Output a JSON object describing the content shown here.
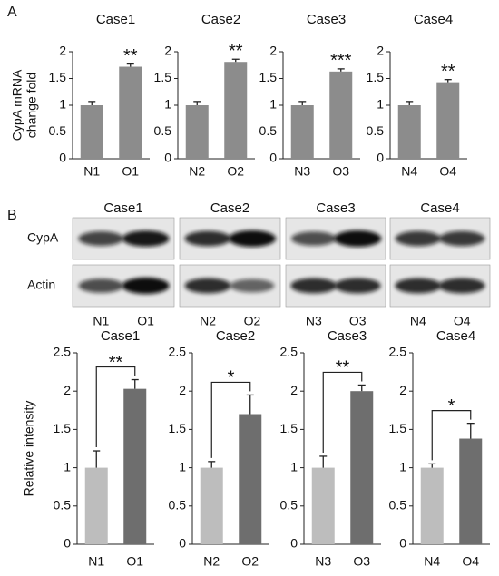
{
  "panel_labels": [
    "A",
    "B"
  ],
  "blot": {
    "titles": [
      "Case1",
      "Case2",
      "Case3",
      "Case4"
    ],
    "rows": [
      "CypA",
      "Actin"
    ],
    "lanes": [
      "N1",
      "O1",
      "N2",
      "O2",
      "N3",
      "O3",
      "N4",
      "O4"
    ]
  },
  "chart_data": [
    {
      "type": "bar",
      "title": "Case1",
      "ylabel": [
        "CypA mRNA",
        "change fold"
      ],
      "categories": [
        "N1",
        "O1"
      ],
      "values": [
        1.0,
        1.72
      ],
      "errors": [
        0.07,
        0.05
      ],
      "colors": [
        "#8c8c8c",
        "#8c8c8c"
      ],
      "annotations": [
        "**"
      ],
      "ylim": [
        0,
        2
      ],
      "yticks": [
        0,
        0.5,
        1,
        1.5,
        2
      ]
    },
    {
      "type": "bar",
      "title": "Case2",
      "categories": [
        "N2",
        "O2"
      ],
      "values": [
        1.0,
        1.81
      ],
      "errors": [
        0.07,
        0.05
      ],
      "colors": [
        "#8c8c8c",
        "#8c8c8c"
      ],
      "annotations": [
        "**"
      ],
      "ylim": [
        0,
        2
      ],
      "yticks": [
        0,
        0.5,
        1,
        1.5,
        2
      ]
    },
    {
      "type": "bar",
      "title": "Case3",
      "categories": [
        "N3",
        "O3"
      ],
      "values": [
        1.0,
        1.63
      ],
      "errors": [
        0.07,
        0.05
      ],
      "colors": [
        "#8c8c8c",
        "#8c8c8c"
      ],
      "annotations": [
        "***"
      ],
      "ylim": [
        0,
        2
      ],
      "yticks": [
        0,
        0.5,
        1,
        1.5,
        2
      ]
    },
    {
      "type": "bar",
      "title": "Case4",
      "categories": [
        "N4",
        "O4"
      ],
      "values": [
        1.0,
        1.43
      ],
      "errors": [
        0.07,
        0.05
      ],
      "colors": [
        "#8c8c8c",
        "#8c8c8c"
      ],
      "annotations": [
        "**"
      ],
      "ylim": [
        0,
        2
      ],
      "yticks": [
        0,
        0.5,
        1,
        1.5,
        2
      ]
    },
    {
      "type": "bracket-bar",
      "title": "Case1",
      "ylabel": [
        "Relative intensity"
      ],
      "categories": [
        "N1",
        "O1"
      ],
      "values": [
        1.0,
        2.03
      ],
      "errors": [
        0.22,
        0.12
      ],
      "colors": [
        "#bdbdbd",
        "#6e6e6e"
      ],
      "annotations": [
        "**"
      ],
      "ylim": [
        0,
        2.5
      ],
      "yticks": [
        0,
        0.5,
        1,
        1.5,
        2,
        2.5
      ]
    },
    {
      "type": "bracket-bar",
      "title": "Case2",
      "categories": [
        "N2",
        "O2"
      ],
      "values": [
        1.0,
        1.7
      ],
      "errors": [
        0.08,
        0.25
      ],
      "colors": [
        "#bdbdbd",
        "#6e6e6e"
      ],
      "annotations": [
        "*"
      ],
      "ylim": [
        0,
        2.5
      ],
      "yticks": [
        0,
        0.5,
        1,
        1.5,
        2,
        2.5
      ]
    },
    {
      "type": "bracket-bar",
      "title": "Case3",
      "categories": [
        "N3",
        "O3"
      ],
      "values": [
        1.0,
        2.0
      ],
      "errors": [
        0.15,
        0.08
      ],
      "colors": [
        "#bdbdbd",
        "#6e6e6e"
      ],
      "annotations": [
        "**"
      ],
      "ylim": [
        0,
        2.5
      ],
      "yticks": [
        0,
        0.5,
        1,
        1.5,
        2,
        2.5
      ]
    },
    {
      "type": "bracket-bar",
      "title": "Case4",
      "categories": [
        "N4",
        "O4"
      ],
      "values": [
        1.0,
        1.38
      ],
      "errors": [
        0.05,
        0.2
      ],
      "colors": [
        "#bdbdbd",
        "#6e6e6e"
      ],
      "annotations": [
        "*"
      ],
      "ylim": [
        0,
        2.5
      ],
      "yticks": [
        0,
        0.5,
        1,
        1.5,
        2,
        2.5
      ]
    }
  ]
}
